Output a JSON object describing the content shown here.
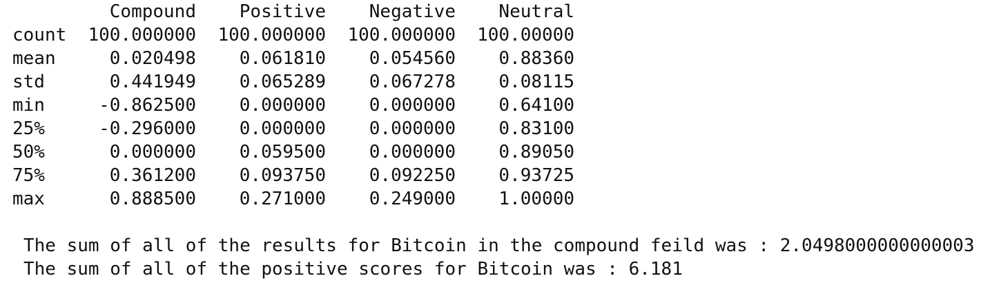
{
  "table": {
    "columns": [
      "Compound",
      "Positive",
      "Negative",
      "Neutral"
    ],
    "rows": [
      {
        "index": "count",
        "values": [
          "100.000000",
          "100.000000",
          "100.000000",
          "100.00000"
        ]
      },
      {
        "index": "mean",
        "values": [
          "0.020498",
          "0.061810",
          "0.054560",
          "0.88360"
        ]
      },
      {
        "index": "std",
        "values": [
          "0.441949",
          "0.065289",
          "0.067278",
          "0.08115"
        ]
      },
      {
        "index": "min",
        "values": [
          "-0.862500",
          "0.000000",
          "0.000000",
          "0.64100"
        ]
      },
      {
        "index": "25%",
        "values": [
          "-0.296000",
          "0.000000",
          "0.000000",
          "0.83100"
        ]
      },
      {
        "index": "50%",
        "values": [
          "0.000000",
          "0.059500",
          "0.000000",
          "0.89050"
        ]
      },
      {
        "index": "75%",
        "values": [
          "0.361200",
          "0.093750",
          "0.092250",
          "0.93725"
        ]
      },
      {
        "index": "max",
        "values": [
          "0.888500",
          "0.271000",
          "0.249000",
          "1.00000"
        ]
      }
    ]
  },
  "summary": {
    "compound_line": "The sum of all of the results for Bitcoin in the compound feild was : 2.0498000000000003",
    "positive_line": "The sum of all of the positive scores for Bitcoin was : 6.181"
  }
}
